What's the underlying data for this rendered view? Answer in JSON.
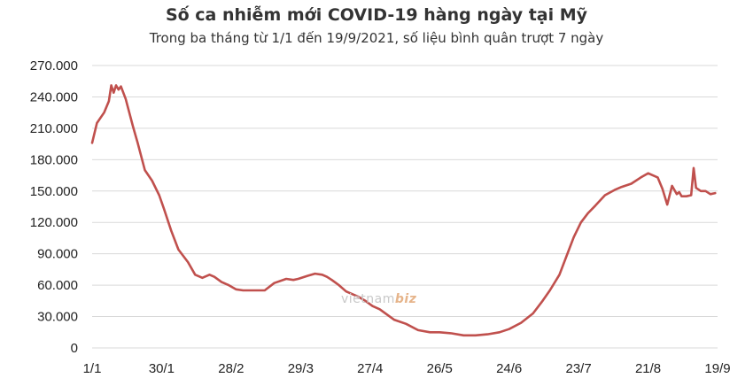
{
  "chart_data": {
    "type": "line",
    "title": "Số ca nhiễm mới COVID-19 hàng ngày tại Mỹ",
    "subtitle": "Trong ba tháng từ 1/1 đến 19/9/2021, số liệu bình quân trượt 7 ngày",
    "xlabel": "",
    "ylabel": "",
    "ylim": [
      0,
      270000
    ],
    "yticks": [
      0,
      30000,
      60000,
      90000,
      120000,
      150000,
      180000,
      210000,
      240000,
      270000
    ],
    "ytick_labels": [
      "0",
      "30.000",
      "60.000",
      "90.000",
      "120.000",
      "150.000",
      "180.000",
      "210.000",
      "240.000",
      "270.000"
    ],
    "xlim": [
      0,
      261
    ],
    "xticks": [
      0,
      29,
      58,
      87,
      116,
      145,
      174,
      203,
      232,
      261
    ],
    "xtick_labels": [
      "1/1",
      "30/1",
      "28/2",
      "29/3",
      "27/4",
      "26/5",
      "24/6",
      "23/7",
      "21/8",
      "19/9"
    ],
    "grid": true,
    "line_color": "#c0504d",
    "series": [
      {
        "x": [
          0,
          2,
          5,
          7,
          8,
          9,
          10,
          11,
          12,
          14,
          17,
          19,
          22,
          25,
          28,
          30,
          33,
          36,
          40,
          43,
          46,
          49,
          51,
          54,
          57,
          60,
          63,
          67,
          72,
          76,
          81,
          84,
          86,
          90,
          93,
          96,
          98,
          100,
          103,
          106,
          109,
          111,
          114,
          117,
          120,
          123,
          126,
          131,
          136,
          141,
          145,
          150,
          155,
          160,
          165,
          170,
          174,
          179,
          184,
          188,
          191,
          195,
          198,
          201,
          204,
          207,
          210,
          214,
          218,
          221,
          225,
          229,
          232,
          236,
          238,
          240,
          242,
          244,
          245,
          246,
          248,
          250,
          251,
          252,
          254,
          256,
          258,
          260
        ],
        "y": [
          196000,
          215000,
          225000,
          236000,
          251000,
          244000,
          251000,
          247000,
          250000,
          238000,
          212000,
          196000,
          170000,
          160000,
          146000,
          133000,
          112000,
          94000,
          82000,
          70000,
          67000,
          70000,
          68000,
          63000,
          60000,
          56000,
          55000,
          55000,
          55000,
          62000,
          66000,
          65000,
          66000,
          69000,
          71000,
          70000,
          68000,
          65000,
          60000,
          54000,
          51000,
          49000,
          45000,
          40000,
          37000,
          32000,
          27000,
          23000,
          17000,
          15000,
          15000,
          14000,
          12000,
          12000,
          13000,
          15000,
          18000,
          24000,
          33000,
          45000,
          55000,
          70000,
          88000,
          106000,
          120000,
          129000,
          136000,
          146000,
          151000,
          154000,
          157000,
          163000,
          167000,
          163000,
          152000,
          137000,
          155000,
          147000,
          149000,
          145000,
          145000,
          146000,
          172000,
          153000,
          150000,
          150000,
          147000,
          148000
        ]
      }
    ]
  },
  "watermark": {
    "prefix": "vietnam",
    "brand": "biz"
  }
}
